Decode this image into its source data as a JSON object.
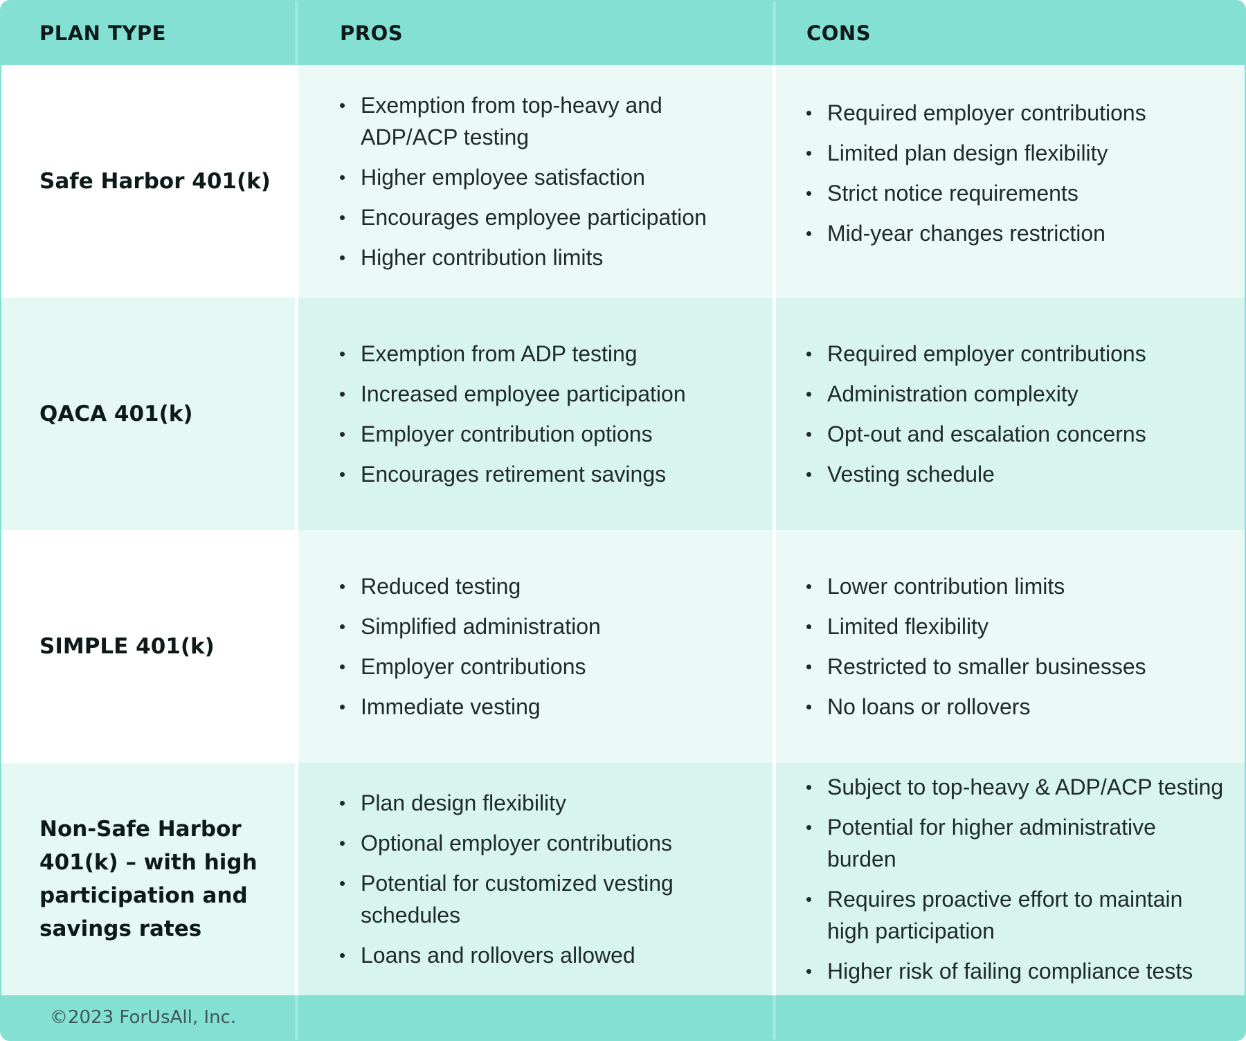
{
  "header": {
    "plan_type": "PLAN TYPE",
    "pros": "PROS",
    "cons": "CONS"
  },
  "rows": [
    {
      "plan": "Safe Harbor 401(k)",
      "pros": [
        "Exemption from top-heavy and ADP/ACP testing",
        "Higher employee satisfaction",
        "Encourages employee participation",
        "Higher contribution limits"
      ],
      "cons": [
        "Required employer contributions",
        "Limited plan design flexibility",
        "Strict notice requirements",
        "Mid-year changes restriction"
      ]
    },
    {
      "plan": "QACA 401(k)",
      "pros": [
        "Exemption from ADP testing",
        "Increased employee participation",
        "Employer contribution options",
        "Encourages retirement savings"
      ],
      "cons": [
        "Required employer contributions",
        "Administration complexity",
        "Opt-out and escalation concerns",
        "Vesting schedule"
      ]
    },
    {
      "plan": "SIMPLE 401(k)",
      "pros": [
        "Reduced testing",
        "Simplified administration",
        "Employer contributions",
        "Immediate vesting"
      ],
      "cons": [
        "Lower contribution limits",
        "Limited flexibility",
        "Restricted to smaller businesses",
        "No loans or rollovers"
      ]
    },
    {
      "plan": "Non-Safe Harbor 401(k) – with high participation and savings rates",
      "pros": [
        "Plan design flexibility",
        "Optional employer contributions",
        "Potential for customized vesting schedules",
        "Loans and rollovers allowed"
      ],
      "cons": [
        "Subject to top-heavy & ADP/ACP testing",
        "Potential for higher administrative burden",
        "Requires proactive effort to maintain high participation",
        "Higher risk of failing compliance tests"
      ]
    }
  ],
  "footer": {
    "copyright": "©2023 ForUsAll, Inc."
  },
  "colors": {
    "header_bg": "#84e0d3",
    "row_white": "#ffffff",
    "row_light": "#ecfaf7",
    "row_mint_plan": "#e6f8f4",
    "row_mint": "#d7f4ee",
    "text": "#1f2a28"
  }
}
